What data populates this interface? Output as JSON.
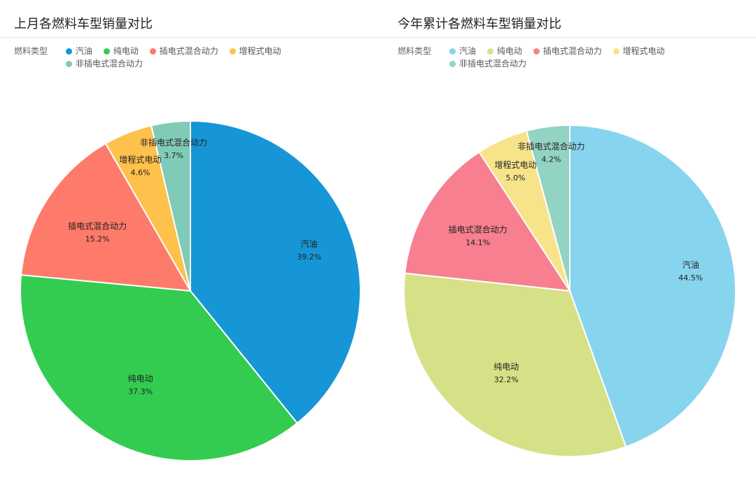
{
  "legend_title": "燃料类型",
  "categories": [
    "汽油",
    "纯电动",
    "插电式混合动力",
    "增程式电动",
    "非插电式混合动力"
  ],
  "chart_data": [
    {
      "type": "pie",
      "title": "上月各燃料车型销量对比",
      "legend_title": "燃料类型",
      "legend_position": "top-left",
      "slices": [
        {
          "label": "汽油",
          "value": 39.2,
          "display": "39.2%",
          "color": "#1696d6"
        },
        {
          "label": "纯电动",
          "value": 37.3,
          "display": "37.3%",
          "color": "#33cc50"
        },
        {
          "label": "插电式混合动力",
          "value": 15.2,
          "display": "15.2%",
          "color": "#fe7a6b"
        },
        {
          "label": "增程式电动",
          "value": 4.6,
          "display": "4.6%",
          "color": "#fec14b"
        },
        {
          "label": "非插电式混合动力",
          "value": 3.7,
          "display": "3.7%",
          "color": "#80cbb7"
        }
      ]
    },
    {
      "type": "pie",
      "title": "今年累计各燃料车型销量对比",
      "legend_title": "燃料类型",
      "legend_position": "top-left",
      "slices": [
        {
          "label": "汽油",
          "value": 44.5,
          "display": "44.5%",
          "color": "#87d4ee"
        },
        {
          "label": "纯电动",
          "value": 32.2,
          "display": "32.2%",
          "color": "#d6e187"
        },
        {
          "label": "插电式混合动力",
          "value": 14.1,
          "display": "14.1%",
          "color": "#f77f8f"
        },
        {
          "label": "增程式电动",
          "value": 5.0,
          "display": "5.0%",
          "color": "#f7e48a"
        },
        {
          "label": "非插电式混合动力",
          "value": 4.2,
          "display": "4.2%",
          "color": "#93d3c3"
        }
      ]
    }
  ]
}
